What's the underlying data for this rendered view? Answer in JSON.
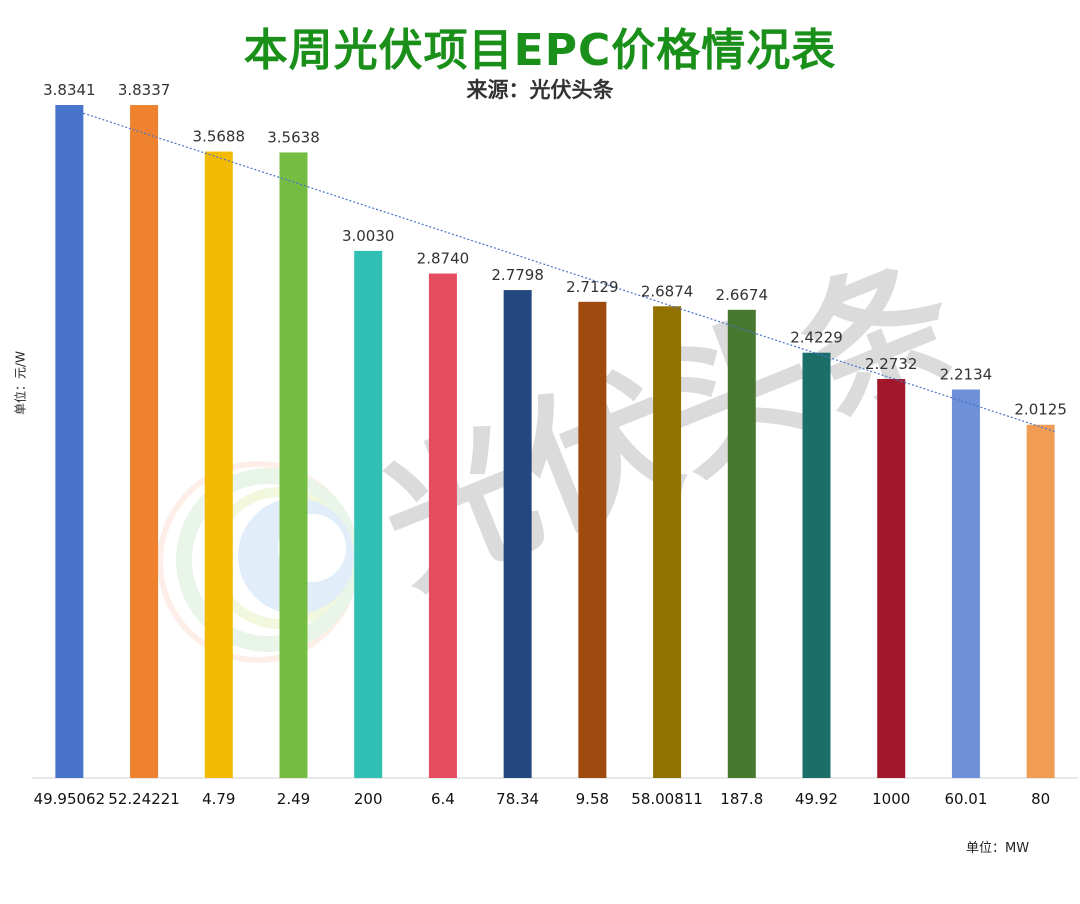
{
  "chart_data": {
    "type": "bar",
    "title": "本周光伏项目EPC价格情况表",
    "subtitle": "来源：光伏头条",
    "ylabel": "单位：元/W",
    "xlabel": "单位：MW",
    "categories": [
      "49.95062",
      "52.24221",
      "4.79",
      "2.49",
      "200",
      "6.4",
      "78.34",
      "9.58",
      "58.00811",
      "187.8",
      "49.92",
      "1000",
      "60.01",
      "80"
    ],
    "values": [
      3.8341,
      3.8337,
      3.5688,
      3.5638,
      3.003,
      2.874,
      2.7798,
      2.7129,
      2.6874,
      2.6674,
      2.4229,
      2.2732,
      2.2134,
      2.0125
    ],
    "data_labels": [
      "3.8341",
      "3.8337",
      "3.5688",
      "3.5638",
      "3.0030",
      "2.8740",
      "2.7798",
      "2.7129",
      "2.6874",
      "2.6674",
      "2.4229",
      "2.2732",
      "2.2134",
      "2.0125"
    ],
    "colors": [
      "#4874cb",
      "#ee822f",
      "#f2ba02",
      "#75bd42",
      "#30c0b4",
      "#e54c5e",
      "#24477f",
      "#9f4b0f",
      "#917100",
      "#48772e",
      "#1c6e69",
      "#a1172c",
      "#6d90d8",
      "#f19c55"
    ],
    "trendline": "linear",
    "trendline_color": "#4874cb",
    "ylim": [
      0,
      4
    ],
    "grid": false,
    "legend": "none"
  },
  "watermark": {
    "text": "光伏头条"
  }
}
